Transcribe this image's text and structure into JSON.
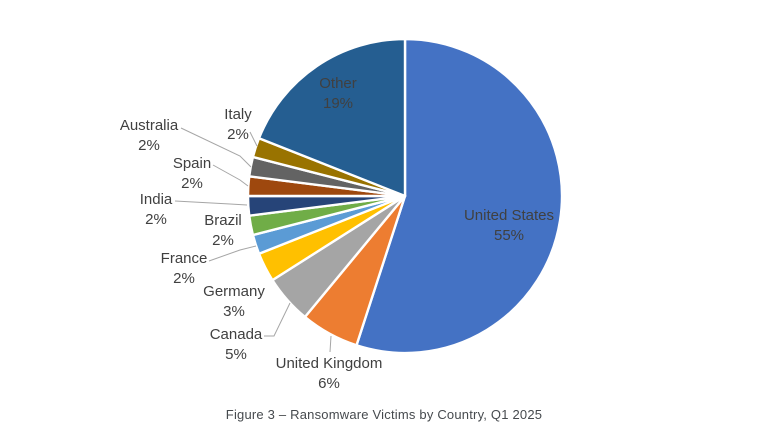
{
  "chart_data": {
    "type": "pie",
    "title": "",
    "categories": [
      "United States",
      "United Kingdom",
      "Canada",
      "Germany",
      "France",
      "Brazil",
      "India",
      "Spain",
      "Australia",
      "Italy",
      "Other"
    ],
    "values": [
      55,
      6,
      5,
      3,
      2,
      2,
      2,
      2,
      2,
      2,
      19
    ],
    "colors": [
      "#4472C4",
      "#ED7D31",
      "#A5A5A5",
      "#FFC000",
      "#5B9BD5",
      "#70AD47",
      "#264478",
      "#9E480E",
      "#636363",
      "#997300",
      "#255E91"
    ],
    "start_angle": 0,
    "direction": "clockwise",
    "legend_position": "none",
    "grid": false,
    "label_color": "#404040",
    "slice_border_color": "#FFFFFF",
    "leader_line_color": "#A6A6A6",
    "data_labels": [
      {
        "category": "United States",
        "text": "United States",
        "percent": "55%",
        "placement": "inside"
      },
      {
        "category": "United Kingdom",
        "text": "United Kingdom",
        "percent": "6%",
        "placement": "outside"
      },
      {
        "category": "Canada",
        "text": "Canada",
        "percent": "5%",
        "placement": "outside"
      },
      {
        "category": "Germany",
        "text": "Germany",
        "percent": "3%",
        "placement": "outside"
      },
      {
        "category": "France",
        "text": "France",
        "percent": "2%",
        "placement": "outside"
      },
      {
        "category": "Brazil",
        "text": "Brazil",
        "percent": "2%",
        "placement": "outside"
      },
      {
        "category": "India",
        "text": "India",
        "percent": "2%",
        "placement": "outside"
      },
      {
        "category": "Spain",
        "text": "Spain",
        "percent": "2%",
        "placement": "outside"
      },
      {
        "category": "Australia",
        "text": "Australia",
        "percent": "2%",
        "placement": "outside"
      },
      {
        "category": "Italy",
        "text": "Italy",
        "percent": "2%",
        "placement": "outside"
      },
      {
        "category": "Other",
        "text": "Other",
        "percent": "19%",
        "placement": "inside"
      }
    ]
  },
  "caption": "Figure 3 – Ransomware Victims by Country, Q1 2025"
}
